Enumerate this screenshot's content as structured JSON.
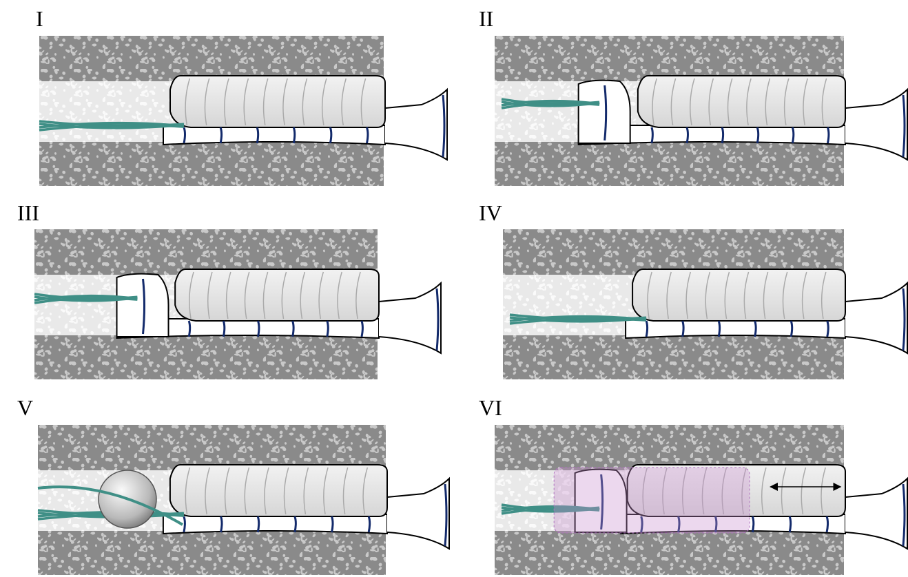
{
  "panels": [
    {
      "label": "I"
    },
    {
      "label": "II"
    },
    {
      "label": "III"
    },
    {
      "label": "IV"
    },
    {
      "label": "V"
    },
    {
      "label": "VI"
    }
  ]
}
